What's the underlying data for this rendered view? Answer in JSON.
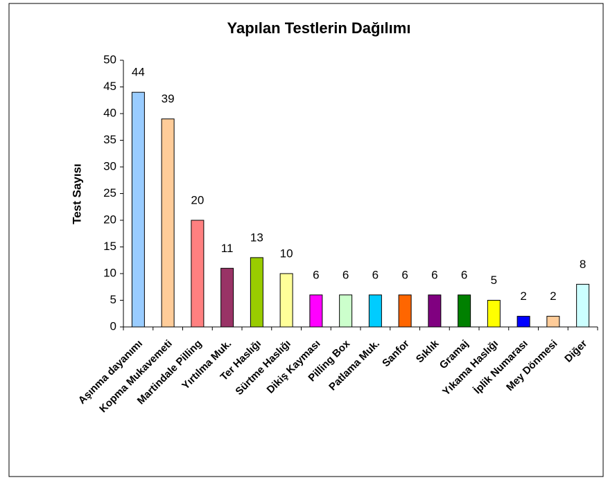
{
  "chart_data": {
    "type": "bar",
    "title": "Yapılan Testlerin Dağılımı",
    "y_label": "Test Sayısı",
    "categories": [
      "Aşınma dayanımı",
      "Kopma Mukavemeti",
      "Martindale Pilling",
      "Yırtılma Muk.",
      "Ter Haslığı",
      "Sürtme Haslığı",
      "Dikiş Kayması",
      "Pilling Box",
      "Patlama Muk.",
      "Sanfor",
      "Sıklık",
      "Gramaj",
      "Yıkama Haslığı",
      "İplik Numarası",
      "Mey Dönmesi",
      "Diğer"
    ],
    "values": [
      44,
      39,
      20,
      11,
      13,
      10,
      6,
      6,
      6,
      6,
      6,
      6,
      5,
      2,
      2,
      8
    ],
    "colors": [
      "#99ccff",
      "#ffcc99",
      "#ff8080",
      "#993366",
      "#99cc00",
      "#ffff99",
      "#ff00ff",
      "#ccffcc",
      "#00ccff",
      "#ff6600",
      "#800080",
      "#008000",
      "#ffff00",
      "#0000ff",
      "#ffcc99",
      "#ccffff"
    ],
    "ylim": [
      0,
      50
    ],
    "yticks": [
      0,
      5,
      10,
      15,
      20,
      25,
      30,
      35,
      40,
      45,
      50
    ],
    "grid": false
  }
}
